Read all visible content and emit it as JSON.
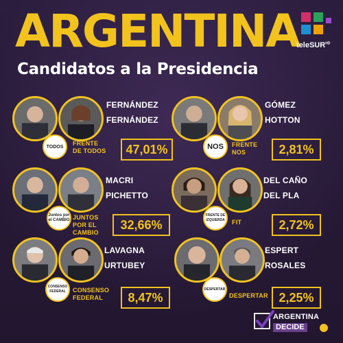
{
  "header": {
    "title": "ARGENTINA",
    "subtitle": "Candidatos a la Presidencia",
    "broadcaster": "teleSUR",
    "broadcaster_suffix": "HD"
  },
  "candidates": [
    {
      "line1": "FERNÁNDEZ",
      "line2": "FERNÁNDEZ",
      "party_line1": "FRENTE",
      "party_line2": "DE TODOS",
      "party_logo_text": "TODOS",
      "percent": "47,01%"
    },
    {
      "line1": "GÓMEZ",
      "line2": "HOTTON",
      "party_line1": "FRENTE",
      "party_line2": "NOS",
      "party_logo_text": "NOS",
      "percent": "2,81%"
    },
    {
      "line1": "MACRI",
      "line2": "PICHETTO",
      "party_line1": "JUNTOS",
      "party_line2": "POR EL",
      "party_line3": "CAMBIO",
      "party_logo_text": "Juntos por el CAMBIO",
      "percent": "32,66%"
    },
    {
      "line1": "DEL CAÑO",
      "line2": "DEL PLA",
      "party_line1": "FIT",
      "party_line2": "",
      "party_logo_text": "FRENTE DE IZQUIERDA",
      "percent": "2,72%"
    },
    {
      "line1": "LAVAGNA",
      "line2": "URTUBEY",
      "party_line1": "CONSENSO",
      "party_line2": "FEDERAL",
      "party_logo_text": "CONSENSO FEDERAL",
      "percent": "8,47%"
    },
    {
      "line1": "ESPERT",
      "line2": "ROSALES",
      "party_line1": "DESPERTAR",
      "party_line2": "",
      "party_logo_text": "DESPERTAR",
      "percent": "2,25%"
    }
  ],
  "footer": {
    "campaign_line1": "ARGENTINA",
    "campaign_line2": "DECIDE"
  },
  "colors": {
    "accent": "#f2c31d",
    "background": "#2a1c3c",
    "text": "#ffffff"
  }
}
